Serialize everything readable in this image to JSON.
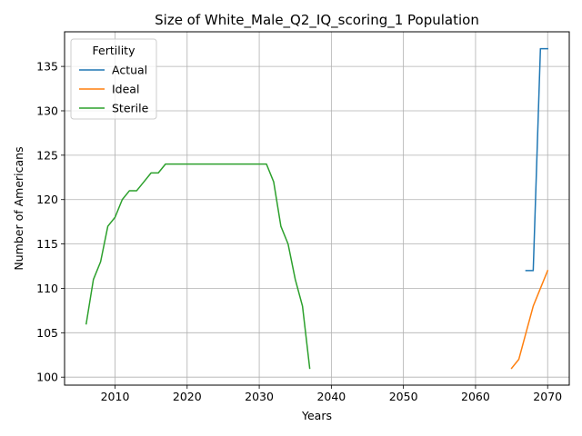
{
  "chart_data": {
    "type": "line",
    "title": "Size of White_Male_Q2_IQ_scoring_1 Population",
    "xlabel": "Years",
    "ylabel": "Number of Americans",
    "xlim": [
      2003,
      2073
    ],
    "ylim": [
      99.1,
      138.9
    ],
    "xticks": [
      2010,
      2020,
      2030,
      2040,
      2050,
      2060,
      2070
    ],
    "yticks": [
      100,
      105,
      110,
      115,
      120,
      125,
      130,
      135
    ],
    "grid": true,
    "legend": {
      "title": "Fertility",
      "placement": "upper-left"
    },
    "series": [
      {
        "name": "Actual",
        "color": "#1f77b4",
        "x": [
          2067,
          2068,
          2069,
          2070
        ],
        "y": [
          112,
          112,
          137,
          137
        ]
      },
      {
        "name": "Ideal",
        "color": "#ff7f0e",
        "x": [
          2065,
          2066,
          2067,
          2068,
          2069,
          2070
        ],
        "y": [
          101,
          102,
          105,
          108,
          110,
          112
        ]
      },
      {
        "name": "Sterile",
        "color": "#2ca02c",
        "x": [
          2006,
          2007,
          2008,
          2009,
          2010,
          2011,
          2012,
          2013,
          2014,
          2015,
          2016,
          2017,
          2018,
          2019,
          2020,
          2021,
          2022,
          2023,
          2024,
          2025,
          2026,
          2027,
          2028,
          2029,
          2030,
          2031,
          2032,
          2033,
          2034,
          2035,
          2036,
          2037
        ],
        "y": [
          106,
          111,
          113,
          117,
          118,
          120,
          121,
          121,
          122,
          123,
          123,
          124,
          124,
          124,
          124,
          124,
          124,
          124,
          124,
          124,
          124,
          124,
          124,
          124,
          124,
          124,
          122,
          117,
          115,
          111,
          108,
          101
        ]
      }
    ]
  }
}
